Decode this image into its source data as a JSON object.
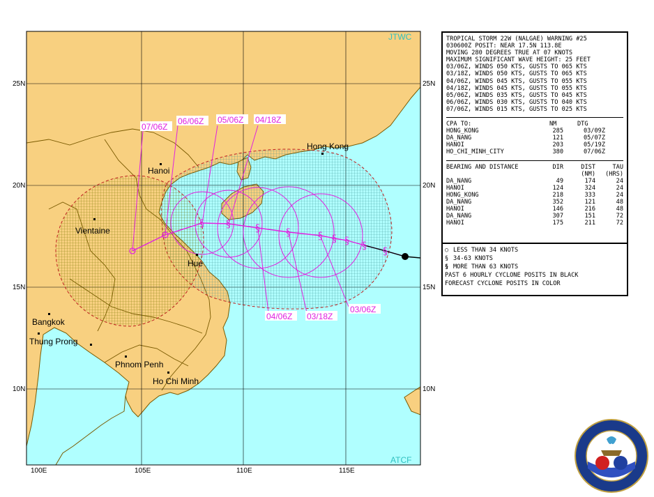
{
  "map": {
    "corner_top": "JTWC",
    "corner_bottom": "ATCF",
    "lat_labels": [
      "25N",
      "20N",
      "15N",
      "10N"
    ],
    "lon_labels": [
      "100E",
      "105E",
      "110E",
      "115E"
    ],
    "cities": [
      "Hong Kong",
      "Hanoi",
      "Vientaine",
      "Hue",
      "Bangkok",
      "Thung Prong",
      "Phnom Penh",
      "Ho Chi Minh"
    ],
    "forecast_tags": [
      "07/06Z",
      "06/06Z",
      "05/06Z",
      "04/18Z",
      "04/06Z",
      "03/18Z",
      "03/06Z"
    ],
    "colors": {
      "land": "#f8d080",
      "sea": "#b0ffff",
      "track": "#e020e0",
      "border": "#7a5a00",
      "hazard_fill": "#a0a000"
    }
  },
  "warning": {
    "lines": [
      "TROPICAL STORM 22W (NALGAE) WARNING #25",
      "030600Z POSIT: NEAR 17.5N 113.8E",
      "MOVING 280 DEGREES TRUE AT 07 KNOTS",
      "MAXIMUM SIGNIFICANT WAVE HEIGHT: 25 FEET",
      "03/06Z, WINDS 050 KTS, GUSTS TO 065 KTS",
      "03/18Z, WINDS 050 KTS, GUSTS TO 065 KTS",
      "04/06Z, WINDS 045 KTS, GUSTS TO 055 KTS",
      "04/18Z, WINDS 045 KTS, GUSTS TO 055 KTS",
      "05/06Z, WINDS 035 KTS, GUSTS TO 045 KTS",
      "06/06Z, WINDS 030 KTS, GUSTS TO 040 KTS",
      "07/06Z, WINDS 015 KTS, GUSTS TO 025 KTS"
    ],
    "cpa": {
      "headers": [
        "CPA TO:",
        "NM",
        "DTG"
      ],
      "rows": [
        [
          "HONG_KONG",
          "285",
          "03/09Z"
        ],
        [
          "DA_NANG",
          "121",
          "05/07Z"
        ],
        [
          "HANOI",
          "203",
          "05/19Z"
        ],
        [
          "HO_CHI_MINH_CITY",
          "380",
          "07/06Z"
        ]
      ]
    },
    "bearing": {
      "headers": [
        "BEARING AND DISTANCE",
        "DIR",
        "DIST",
        "TAU"
      ],
      "subheaders": [
        "(NM)",
        "(HRS)"
      ],
      "rows": [
        [
          "DA_NANG",
          "49",
          "174",
          "24"
        ],
        [
          "HANOI",
          "124",
          "324",
          "24"
        ],
        [
          "HONG_KONG",
          "218",
          "333",
          "24"
        ],
        [
          "DA_NANG",
          "352",
          "121",
          "48"
        ],
        [
          "HANOI",
          "146",
          "216",
          "48"
        ],
        [
          "DA_NANG",
          "307",
          "151",
          "72"
        ],
        [
          "HANOI",
          "175",
          "211",
          "72"
        ]
      ]
    },
    "legend": [
      "LESS THAN 34 KNOTS",
      "34-63 KNOTS",
      "MORE THAN 63 KNOTS",
      "PAST 6 HOURLY CYCLONE POSITS IN BLACK",
      "FORECAST CYCLONE POSITS IN COLOR"
    ]
  },
  "seal": {
    "top_text": "JOINT TYPHOON WARNING CENTER",
    "bottom_text": "PEARL HARBOR, HAWAII",
    "left_text": "USAF",
    "right_text": "USN"
  }
}
